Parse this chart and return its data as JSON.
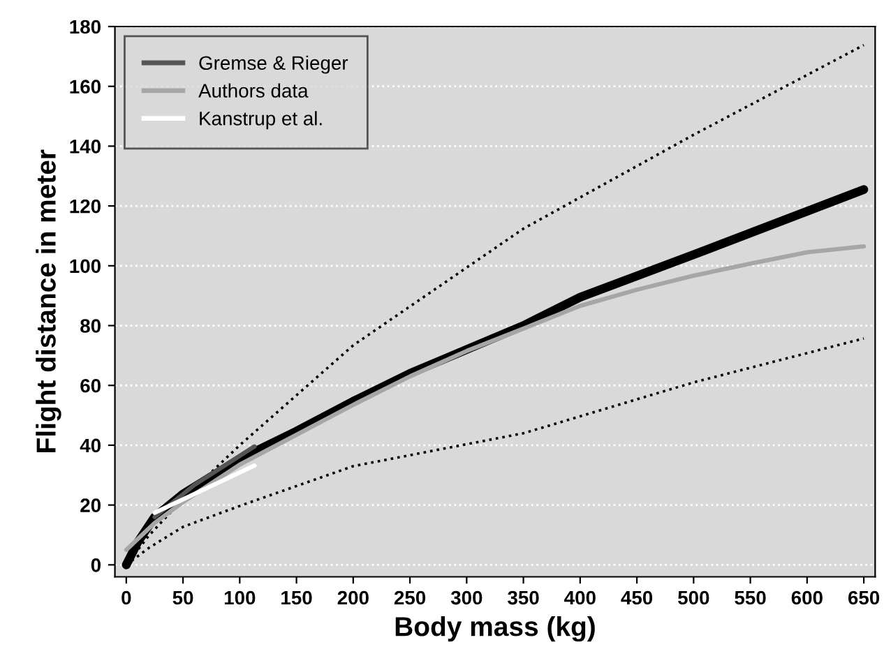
{
  "chart_data": {
    "type": "line",
    "xlabel": "Body mass (kg)",
    "ylabel": "Flight distance in meter",
    "xlim": [
      -10,
      660
    ],
    "ylim": [
      -4,
      180
    ],
    "xticks": [
      0,
      50,
      100,
      150,
      200,
      250,
      300,
      350,
      400,
      450,
      500,
      550,
      600,
      650
    ],
    "yticks": [
      0,
      20,
      40,
      60,
      80,
      100,
      120,
      140,
      160,
      180
    ],
    "grid": "y",
    "legend": "top left",
    "series": [
      {
        "color": "#000000",
        "line_style": "dotted",
        "x": [
          0,
          20,
          50,
          100,
          200,
          350,
          500,
          650
        ],
        "values": [
          0,
          9.8,
          22,
          40,
          73.4,
          112.4,
          143.8,
          173.8
        ]
      },
      {
        "color": "#000000",
        "line_style": "dotted",
        "x": [
          0,
          20,
          50,
          100,
          200,
          350,
          500,
          650
        ],
        "values": [
          0,
          5.7,
          12.7,
          19.7,
          33,
          44,
          61,
          75.7
        ]
      },
      {
        "color": "#000000",
        "line_style": "solid",
        "x": [
          0,
          10,
          25,
          50,
          100,
          150,
          200,
          250,
          300,
          350,
          400,
          500,
          650
        ],
        "values": [
          0,
          7.5,
          16,
          23.7,
          35.4,
          44.7,
          54.7,
          64,
          72,
          80,
          89.5,
          103.7,
          125.5
        ]
      },
      {
        "name": "Authors data",
        "color": "#a6a6a6",
        "line_style": "solid",
        "x": [
          0,
          25,
          50,
          100,
          150,
          200,
          250,
          300,
          350,
          400,
          450,
          500,
          550,
          600,
          650
        ],
        "values": [
          5,
          14,
          21,
          33.5,
          43.5,
          53.5,
          63,
          71.5,
          79,
          86.6,
          92,
          96.7,
          100.7,
          104.5,
          106.5
        ]
      },
      {
        "name": "Gremse & Rieger",
        "color": "#555555",
        "line_style": "solid",
        "x": [
          25,
          60,
          113
        ],
        "values": [
          16,
          26.7,
          39.6
        ]
      },
      {
        "name": "Kanstrup et al.",
        "color": "#ffffff",
        "line_style": "solid",
        "x": [
          25,
          113
        ],
        "values": [
          17.4,
          33.2
        ]
      }
    ]
  }
}
